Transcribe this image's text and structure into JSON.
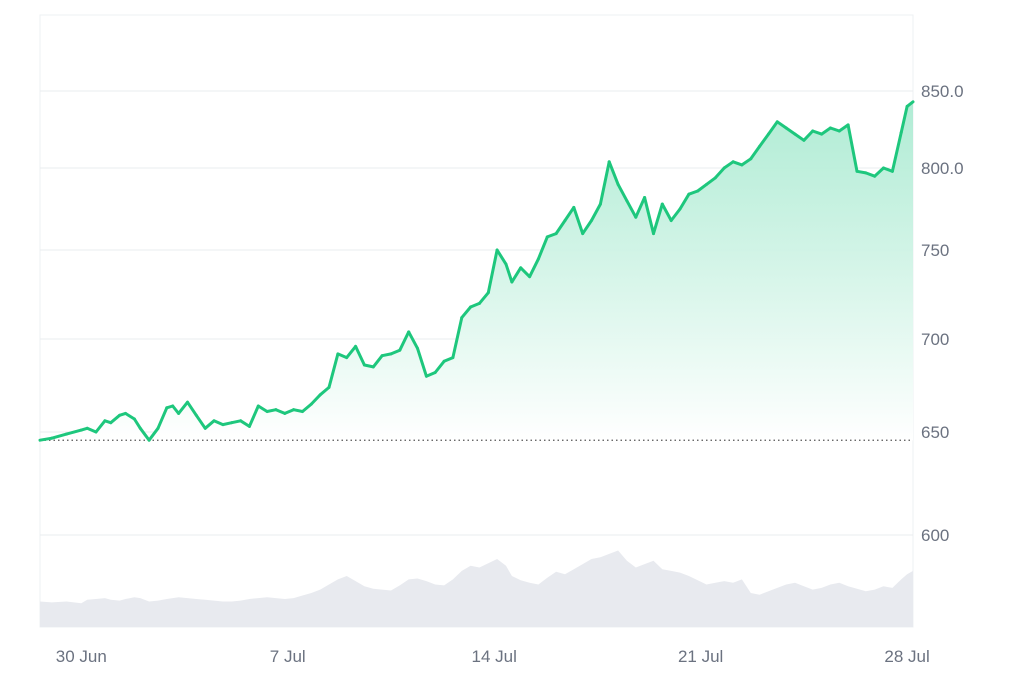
{
  "chart_data": {
    "type": "area",
    "title": "",
    "xlabel": "",
    "ylabel": "",
    "x_tick_labels": [
      "30 Jun",
      "7 Jul",
      "14 Jul",
      "21 Jul",
      "28 Jul"
    ],
    "x_tick_positions": [
      0.0,
      7.0,
      14.0,
      21.0,
      28.0
    ],
    "y_tick_labels": [
      "850.0",
      "800.0",
      "750",
      "700",
      "650",
      "600"
    ],
    "y_tick_values": [
      850,
      800,
      750,
      700,
      650,
      600
    ],
    "reference_line": {
      "value": 646,
      "style": "dotted"
    },
    "grid": true,
    "legend": "none",
    "colors": {
      "line_up": "#1ec77d",
      "line_down": "#ea3943",
      "area_top": "#a8ead0",
      "area_bottom": "#ffffff",
      "volume": "#e8eaef",
      "grid": "#e9ecef",
      "axis_text": "#6b7280"
    },
    "series": [
      {
        "x": [
          -1.4,
          -1.0,
          -0.5,
          0.0,
          0.2,
          0.5,
          0.8,
          1.0,
          1.3,
          1.5,
          1.8,
          2.0,
          2.3,
          2.6,
          2.9,
          3.1,
          3.3,
          3.6,
          3.9,
          4.2,
          4.5,
          4.8,
          5.1,
          5.4,
          5.7,
          6.0,
          6.3,
          6.6,
          6.9,
          7.2,
          7.5,
          7.8,
          8.1,
          8.4,
          8.7,
          9.0,
          9.3,
          9.6,
          9.9,
          10.2,
          10.5,
          10.8,
          11.1,
          11.4,
          11.7,
          12.0,
          12.3,
          12.6,
          12.9,
          13.2,
          13.5,
          13.8,
          14.1,
          14.4,
          14.6,
          14.9,
          15.2,
          15.5,
          15.8,
          16.1,
          16.4,
          16.7,
          17.0,
          17.3,
          17.6,
          17.9,
          18.2,
          18.5,
          18.8,
          19.1,
          19.4,
          19.7,
          20.0,
          20.3,
          20.6,
          20.9,
          21.2,
          21.5,
          21.8,
          22.1,
          22.4,
          22.7,
          23.0,
          23.3,
          23.6,
          23.9,
          24.2,
          24.5,
          24.8,
          25.1,
          25.4,
          25.7,
          26.0,
          26.3,
          26.6,
          26.9,
          27.2,
          27.5,
          27.8,
          28.0,
          28.2
        ],
        "y": [
          646,
          647,
          649,
          651,
          652,
          650,
          656,
          655,
          659,
          660,
          657,
          652,
          646,
          652,
          663,
          664,
          660,
          666,
          659,
          652,
          656,
          654,
          655,
          656,
          653,
          664,
          661,
          662,
          660,
          662,
          661,
          665,
          670,
          674,
          692,
          690,
          696,
          686,
          685,
          691,
          692,
          694,
          704,
          695,
          680,
          682,
          688,
          690,
          712,
          718,
          720,
          726,
          750,
          742,
          732,
          740,
          735,
          745,
          758,
          760,
          768,
          776,
          760,
          768,
          778,
          804,
          790,
          780,
          770,
          782,
          760,
          778,
          768,
          775,
          784,
          786,
          790,
          794,
          800,
          804,
          802,
          806,
          814,
          822,
          830,
          826,
          822,
          818,
          824,
          822,
          826,
          824,
          828,
          798,
          797,
          795,
          800,
          798,
          823,
          840,
          843
        ],
        "volume": [
          0.3,
          0.29,
          0.3,
          0.28,
          0.32,
          0.33,
          0.34,
          0.32,
          0.31,
          0.33,
          0.35,
          0.34,
          0.3,
          0.31,
          0.33,
          0.34,
          0.35,
          0.34,
          0.33,
          0.32,
          0.31,
          0.3,
          0.3,
          0.31,
          0.33,
          0.34,
          0.35,
          0.34,
          0.33,
          0.34,
          0.37,
          0.4,
          0.44,
          0.5,
          0.56,
          0.6,
          0.54,
          0.48,
          0.45,
          0.44,
          0.43,
          0.49,
          0.56,
          0.57,
          0.54,
          0.5,
          0.49,
          0.56,
          0.66,
          0.72,
          0.7,
          0.75,
          0.8,
          0.72,
          0.6,
          0.55,
          0.52,
          0.5,
          0.58,
          0.65,
          0.62,
          0.68,
          0.74,
          0.8,
          0.82,
          0.86,
          0.9,
          0.78,
          0.7,
          0.74,
          0.78,
          0.68,
          0.66,
          0.64,
          0.6,
          0.55,
          0.5,
          0.52,
          0.54,
          0.52,
          0.56,
          0.4,
          0.38,
          0.42,
          0.46,
          0.5,
          0.52,
          0.48,
          0.44,
          0.46,
          0.5,
          0.52,
          0.48,
          0.45,
          0.42,
          0.44,
          0.48,
          0.46,
          0.56,
          0.62,
          0.66
        ]
      }
    ]
  }
}
